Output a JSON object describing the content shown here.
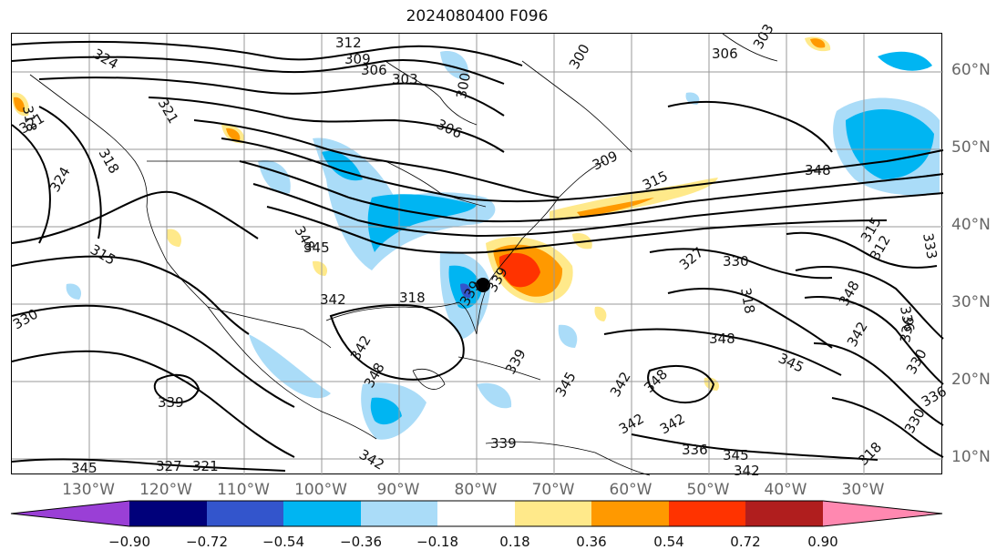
{
  "figure": {
    "title": "2024080400 F096"
  },
  "axes": {
    "lat_labels": [
      "60°N",
      "50°N",
      "40°N",
      "30°N",
      "20°N",
      "10°N"
    ],
    "lon_labels": [
      "130°W",
      "120°W",
      "110°W",
      "100°W",
      "90°W",
      "80°W",
      "70°W",
      "60°W",
      "50°W",
      "40°W",
      "30°W"
    ]
  },
  "contour_labels": [
    "324",
    "312",
    "309",
    "306",
    "303",
    "300",
    "306",
    "300",
    "306",
    "303",
    "318",
    "321",
    "321",
    "318",
    "324",
    "315",
    "330",
    "348",
    "345",
    "309",
    "315",
    "348",
    "315",
    "333",
    "327",
    "330",
    "318",
    "312",
    "348",
    "342",
    "348",
    "345",
    "336",
    "336",
    "330",
    "336",
    "330",
    "318",
    "339",
    "339",
    "342",
    "348",
    "339",
    "345",
    "342",
    "348",
    "342",
    "342",
    "336",
    "345",
    "342",
    "339",
    "342",
    "339",
    "345",
    "327",
    "321",
    "318",
    "342"
  ],
  "colorbar": {
    "ticks": [
      "−0.90",
      "−0.72",
      "−0.54",
      "−0.36",
      "−0.18",
      "0.18",
      "0.36",
      "0.54",
      "0.72",
      "0.90"
    ],
    "colors": {
      "under": "#9a3fd6",
      "b1": "#00007a",
      "b2": "#3355cc",
      "b3": "#00b5f2",
      "b4": "#aadcf8",
      "b5": "#ffffff",
      "b6": "#ffe98a",
      "b7": "#ff9900",
      "b8": "#ff3300",
      "b9": "#b01e1e",
      "over": "#ff88b0"
    }
  }
}
